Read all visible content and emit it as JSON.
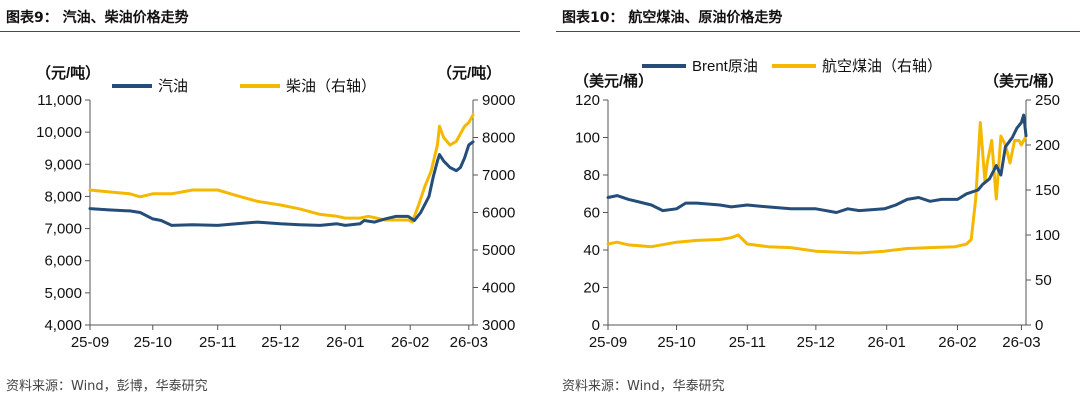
{
  "charts": [
    {
      "fig_title": "图表9：  汽油、柴油价格走势",
      "source": "资料来源：Wind，彭博，华泰研究"
    },
    {
      "fig_title": "图表10：  航空煤油、原油价格走势",
      "source": "资料来源：Wind，华泰研究"
    }
  ],
  "chart_data": [
    {
      "type": "line",
      "x_tick_labels": [
        "25-09",
        "25-10",
        "25-11",
        "25-12",
        "26-01",
        "26-02",
        "26-03"
      ],
      "left_axis_unit": "（元/吨）",
      "right_axis_unit": "（元/吨）",
      "ylim_left": [
        4000,
        11000
      ],
      "yticks_left": [
        "4,000",
        "5,000",
        "6,000",
        "7,000",
        "8,000",
        "9,000",
        "10,000",
        "11,000"
      ],
      "ylim_right": [
        3000,
        9000
      ],
      "yticks_right": [
        "3000",
        "4000",
        "5000",
        "6000",
        "7000",
        "8000",
        "9000"
      ],
      "grid": false,
      "legend_position": "top",
      "series": [
        {
          "name": "汽油",
          "axis": "left",
          "color": "#244d7a",
          "x": [
            "2025-09-01",
            "2025-09-10",
            "2025-09-20",
            "2025-09-25",
            "2025-10-01",
            "2025-10-05",
            "2025-10-10",
            "2025-10-20",
            "2025-11-01",
            "2025-11-10",
            "2025-11-20",
            "2025-12-01",
            "2025-12-10",
            "2025-12-20",
            "2025-12-28",
            "2026-01-01",
            "2026-01-08",
            "2026-01-10",
            "2026-01-15",
            "2026-01-20",
            "2026-01-25",
            "2026-01-31",
            "2026-02-03",
            "2026-02-06",
            "2026-02-10",
            "2026-02-12",
            "2026-02-14",
            "2026-02-15",
            "2026-02-17",
            "2026-02-20",
            "2026-02-23",
            "2026-02-25",
            "2026-02-27",
            "2026-03-01",
            "2026-03-03"
          ],
          "values": [
            7620,
            7580,
            7550,
            7500,
            7300,
            7250,
            7100,
            7120,
            7100,
            7150,
            7200,
            7150,
            7120,
            7100,
            7150,
            7100,
            7150,
            7250,
            7200,
            7300,
            7380,
            7380,
            7250,
            7500,
            8000,
            8600,
            9100,
            9300,
            9100,
            8900,
            8800,
            8900,
            9200,
            9600,
            9700
          ]
        },
        {
          "name": "柴油（右轴）",
          "axis": "right",
          "color": "#f5b800",
          "x": [
            "2025-09-01",
            "2025-09-10",
            "2025-09-20",
            "2025-09-25",
            "2025-10-01",
            "2025-10-10",
            "2025-10-20",
            "2025-11-01",
            "2025-11-10",
            "2025-11-20",
            "2025-12-01",
            "2025-12-10",
            "2025-12-20",
            "2025-12-28",
            "2026-01-01",
            "2026-01-08",
            "2026-01-12",
            "2026-01-20",
            "2026-01-31",
            "2026-02-02",
            "2026-02-05",
            "2026-02-08",
            "2026-02-11",
            "2026-02-14",
            "2026-02-15",
            "2026-02-17",
            "2026-02-20",
            "2026-02-23",
            "2026-02-25",
            "2026-02-27",
            "2026-03-01",
            "2026-03-03"
          ],
          "values": [
            6600,
            6550,
            6500,
            6420,
            6500,
            6500,
            6600,
            6600,
            6450,
            6300,
            6200,
            6100,
            5950,
            5900,
            5850,
            5850,
            5900,
            5800,
            5800,
            5750,
            6200,
            6700,
            7100,
            7800,
            8300,
            8000,
            7800,
            7900,
            8100,
            8300,
            8400,
            8600
          ]
        }
      ]
    },
    {
      "type": "line",
      "x_tick_labels": [
        "25-09",
        "25-10",
        "25-11",
        "25-12",
        "26-01",
        "26-02",
        "26-03"
      ],
      "left_axis_unit": "（美元/桶）",
      "right_axis_unit": "（美元/桶）",
      "ylim_left": [
        0,
        120
      ],
      "yticks_left": [
        "0",
        "20",
        "40",
        "60",
        "80",
        "100",
        "120"
      ],
      "ylim_right": [
        0,
        250
      ],
      "yticks_right": [
        "0",
        "50",
        "100",
        "150",
        "200",
        "250"
      ],
      "grid": false,
      "legend_position": "top",
      "series": [
        {
          "name": "Brent原油",
          "axis": "left",
          "color": "#244d7a",
          "x": [
            "2025-09-01",
            "2025-09-05",
            "2025-09-10",
            "2025-09-20",
            "2025-09-25",
            "2025-10-01",
            "2025-10-05",
            "2025-10-10",
            "2025-10-20",
            "2025-10-25",
            "2025-11-01",
            "2025-11-10",
            "2025-11-20",
            "2025-12-01",
            "2025-12-10",
            "2025-12-15",
            "2025-12-20",
            "2025-12-31",
            "2026-01-05",
            "2026-01-10",
            "2026-01-15",
            "2026-01-20",
            "2026-01-25",
            "2026-02-01",
            "2026-02-05",
            "2026-02-10",
            "2026-02-12",
            "2026-02-15",
            "2026-02-18",
            "2026-02-20",
            "2026-02-22",
            "2026-02-25",
            "2026-02-27",
            "2026-03-01",
            "2026-03-02",
            "2026-03-03"
          ],
          "values": [
            68,
            69,
            67,
            64,
            61,
            62,
            65,
            65,
            64,
            63,
            64,
            63,
            62,
            62,
            60,
            62,
            61,
            62,
            64,
            67,
            68,
            66,
            67,
            67,
            70,
            72,
            75,
            78,
            85,
            80,
            95,
            100,
            105,
            108,
            112,
            101
          ]
        },
        {
          "name": "航空煤油（右轴）",
          "axis": "right",
          "color": "#f5b800",
          "x": [
            "2025-09-01",
            "2025-09-05",
            "2025-09-10",
            "2025-09-20",
            "2025-10-01",
            "2025-10-10",
            "2025-10-20",
            "2025-10-25",
            "2025-10-28",
            "2025-11-01",
            "2025-11-10",
            "2025-11-20",
            "2025-12-01",
            "2025-12-10",
            "2025-12-20",
            "2025-12-31",
            "2026-01-10",
            "2026-01-20",
            "2026-01-31",
            "2026-02-05",
            "2026-02-07",
            "2026-02-09",
            "2026-02-11",
            "2026-02-13",
            "2026-02-14",
            "2026-02-16",
            "2026-02-18",
            "2026-02-20",
            "2026-02-22",
            "2026-02-24",
            "2026-02-26",
            "2026-02-28",
            "2026-03-01",
            "2026-03-03"
          ],
          "values": [
            90,
            92,
            89,
            87,
            92,
            94,
            95,
            97,
            100,
            90,
            87,
            86,
            82,
            81,
            80,
            82,
            85,
            86,
            87,
            90,
            95,
            140,
            225,
            160,
            180,
            205,
            140,
            210,
            200,
            180,
            205,
            205,
            200,
            210
          ]
        }
      ]
    }
  ]
}
